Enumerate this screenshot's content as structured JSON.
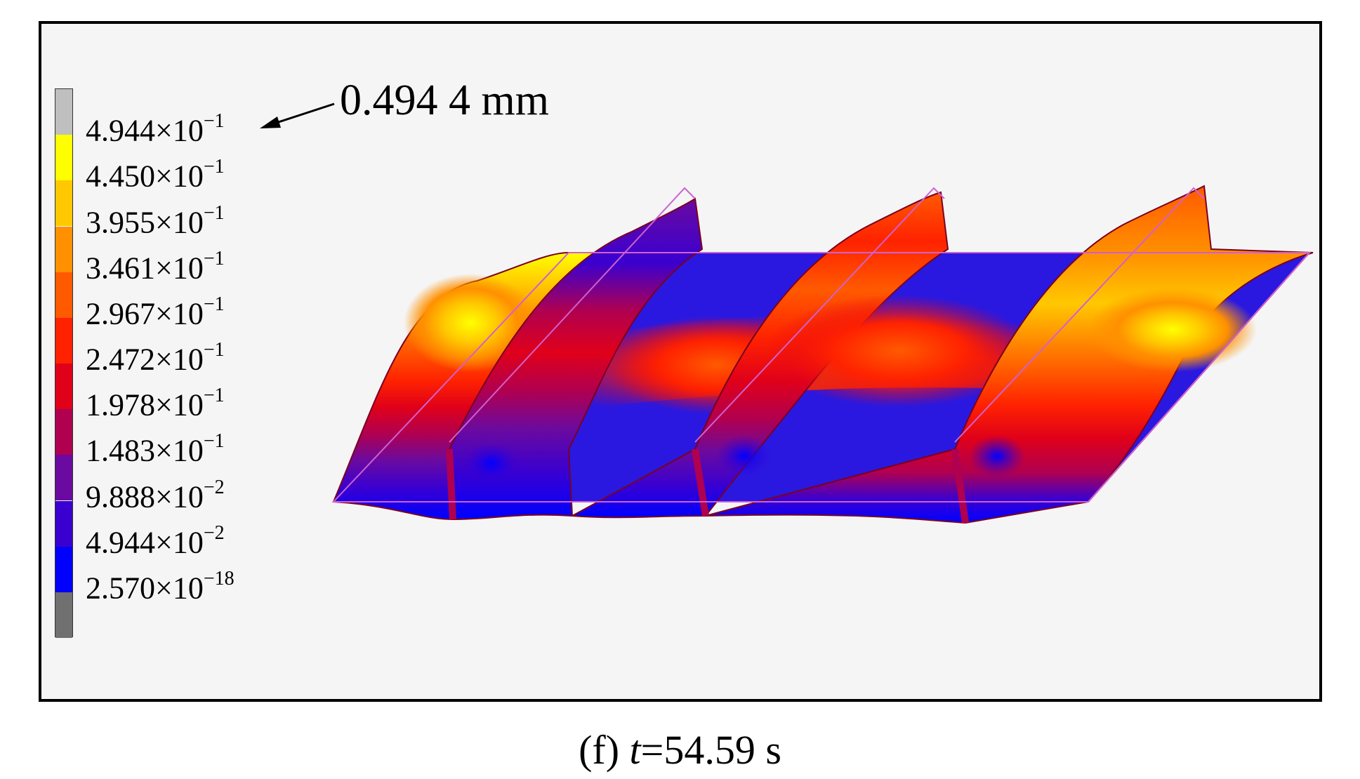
{
  "legend": {
    "entries": [
      {
        "mantissa": "4.944",
        "times": "×10",
        "exp": "−1",
        "color": "#bfbfbf"
      },
      {
        "mantissa": "4.450",
        "times": "×10",
        "exp": "−1",
        "color": "#ffff00"
      },
      {
        "mantissa": "3.955",
        "times": "×10",
        "exp": "−1",
        "color": "#ffc800"
      },
      {
        "mantissa": "3.461",
        "times": "×10",
        "exp": "−1",
        "color": "#ff9000"
      },
      {
        "mantissa": "2.967",
        "times": "×10",
        "exp": "−1",
        "color": "#ff5a00"
      },
      {
        "mantissa": "2.472",
        "times": "×10",
        "exp": "−1",
        "color": "#ff2200"
      },
      {
        "mantissa": "1.978",
        "times": "×10",
        "exp": "−1",
        "color": "#e0001a"
      },
      {
        "mantissa": "1.483",
        "times": "×10",
        "exp": "−1",
        "color": "#b00050"
      },
      {
        "mantissa": "9.888",
        "times": "×10",
        "exp": "−2",
        "color": "#6a0aa0"
      },
      {
        "mantissa": "4.944",
        "times": "×10",
        "exp": "−2",
        "color": "#3a00d0"
      },
      {
        "mantissa": "2.570",
        "times": "×10",
        "exp": "−18",
        "color": "#0000ff"
      }
    ],
    "below_min_color": "#707070"
  },
  "annotation": {
    "max_value": "0.494 4 mm"
  },
  "caption": {
    "prefix": "(f) ",
    "variable": "t",
    "rest": "=54.59 s"
  },
  "colors": {
    "frame_border": "#000000",
    "background": "#f5f5f5",
    "wireframe": "#d060d0",
    "edge": "#7a0020"
  }
}
